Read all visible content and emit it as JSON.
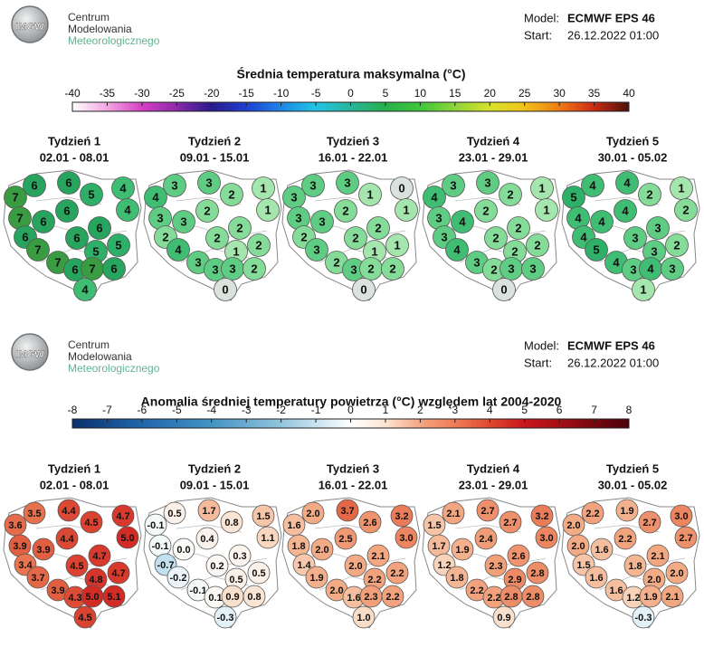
{
  "panels": [
    {
      "header": {
        "logo": "IMGW",
        "lines": [
          "Centrum",
          "Modelowania",
          "Meteorologicznego"
        ],
        "model_label": "Model:",
        "model": "ECMWF EPS 46",
        "start_label": "Start:",
        "start": "26.12.2022 01:00"
      },
      "title": "Średnia temperatura maksymalna (°C)",
      "scale_ticks": [
        -40,
        -35,
        -30,
        -25,
        -20,
        -15,
        -10,
        -5,
        0,
        5,
        10,
        15,
        20,
        25,
        30,
        35,
        40
      ],
      "weeks": [
        {
          "label": "Tydzień 1",
          "dates": "02.01 - 08.01",
          "values": [
            "6",
            "6",
            "5",
            "4",
            "7",
            "6",
            "4",
            "7",
            "6",
            "6",
            "6",
            "6",
            "5",
            "5",
            "7",
            "7",
            "6",
            "7",
            "6",
            "4"
          ]
        },
        {
          "label": "Tydzień 2",
          "dates": "09.01 - 15.01",
          "values": [
            "3",
            "3",
            "2",
            "1",
            "4",
            "2",
            "1",
            "3",
            "3",
            "2",
            "2",
            "2",
            "2",
            "1",
            "4",
            "3",
            "3",
            "3",
            "2",
            "0"
          ]
        },
        {
          "label": "Tydzień 3",
          "dates": "16.01 - 22.01",
          "values": [
            "3",
            "3",
            "1",
            "0",
            "3",
            "2",
            "1",
            "3",
            "3",
            "2",
            "2",
            "2",
            "1",
            "1",
            "3",
            "2",
            "3",
            "2",
            "2",
            "0"
          ]
        },
        {
          "label": "Tydzień 4",
          "dates": "23.01 - 29.01",
          "values": [
            "3",
            "3",
            "2",
            "1",
            "4",
            "2",
            "1",
            "3",
            "4",
            "2",
            "3",
            "2",
            "2",
            "2",
            "4",
            "3",
            "2",
            "3",
            "3",
            "0"
          ]
        },
        {
          "label": "Tydzień 5",
          "dates": "30.01 - 05.02",
          "values": [
            "4",
            "4",
            "2",
            "1",
            "5",
            "4",
            "2",
            "4",
            "4",
            "3",
            "4",
            "3",
            "2",
            "3",
            "5",
            "4",
            "3",
            "4",
            "3",
            "1"
          ]
        }
      ]
    },
    {
      "header": {
        "logo": "IMGW",
        "lines": [
          "Centrum",
          "Modelowania",
          "Meteorologicznego"
        ],
        "model_label": "Model:",
        "model": "ECMWF EPS 46",
        "start_label": "Start:",
        "start": "26.12.2022 01:00"
      },
      "title": "Anomalia średniej temperatury powietrza (°C) względem lat 2004-2020",
      "scale_ticks": [
        -8,
        -7,
        -6,
        -5,
        -4,
        -3,
        -2,
        -1,
        0,
        1,
        2,
        3,
        4,
        5,
        6,
        7,
        8
      ],
      "weeks": [
        {
          "label": "Tydzień 1",
          "dates": "02.01 - 08.01",
          "values": [
            "3.5",
            "4.4",
            "4.5",
            "4.7",
            "3.6",
            "4.4",
            "5.0",
            "3.9",
            "3.9",
            "4.7",
            "3.4",
            "4.5",
            "4.7",
            "4.8",
            "3.7",
            "3.9",
            "4.3",
            "5.0",
            "5.1",
            "4.5"
          ]
        },
        {
          "label": "Tydzień 2",
          "dates": "09.01 - 15.01",
          "values": [
            "0.5",
            "1.7",
            "0.8",
            "1.5",
            "-0.1",
            "0.4",
            "1.1",
            "-0.1",
            "0.0",
            "0.3",
            "-0.7",
            "0.2",
            "0.5",
            "0.5",
            "-0.2",
            "-0.1",
            "0.1",
            "0.9",
            "0.8",
            "-0.3"
          ]
        },
        {
          "label": "Tydzień 3",
          "dates": "16.01 - 22.01",
          "values": [
            "2.0",
            "3.7",
            "2.6",
            "3.2",
            "1.6",
            "2.5",
            "3.0",
            "1.8",
            "2.0",
            "2.1",
            "1.4",
            "2.0",
            "2.2",
            "2.2",
            "1.9",
            "2.0",
            "1.6",
            "2.3",
            "2.2",
            "1.0"
          ]
        },
        {
          "label": "Tydzień 4",
          "dates": "23.01 - 29.01",
          "values": [
            "2.1",
            "2.7",
            "2.7",
            "3.2",
            "1.5",
            "2.4",
            "3.0",
            "1.7",
            "1.9",
            "2.6",
            "1.2",
            "2.3",
            "2.8",
            "2.9",
            "1.8",
            "2.2",
            "2.2",
            "2.8",
            "2.8",
            "0.9"
          ]
        },
        {
          "label": "Tydzień 5",
          "dates": "30.01 - 05.02",
          "values": [
            "2.2",
            "1.9",
            "2.7",
            "3.0",
            "2.0",
            "2.2",
            "2.7",
            "2.0",
            "1.6",
            "2.1",
            "1.5",
            "1.8",
            "2.0",
            "2.0",
            "1.6",
            "1.6",
            "1.2",
            "1.9",
            "2.1",
            "-0.3"
          ]
        }
      ]
    }
  ]
}
